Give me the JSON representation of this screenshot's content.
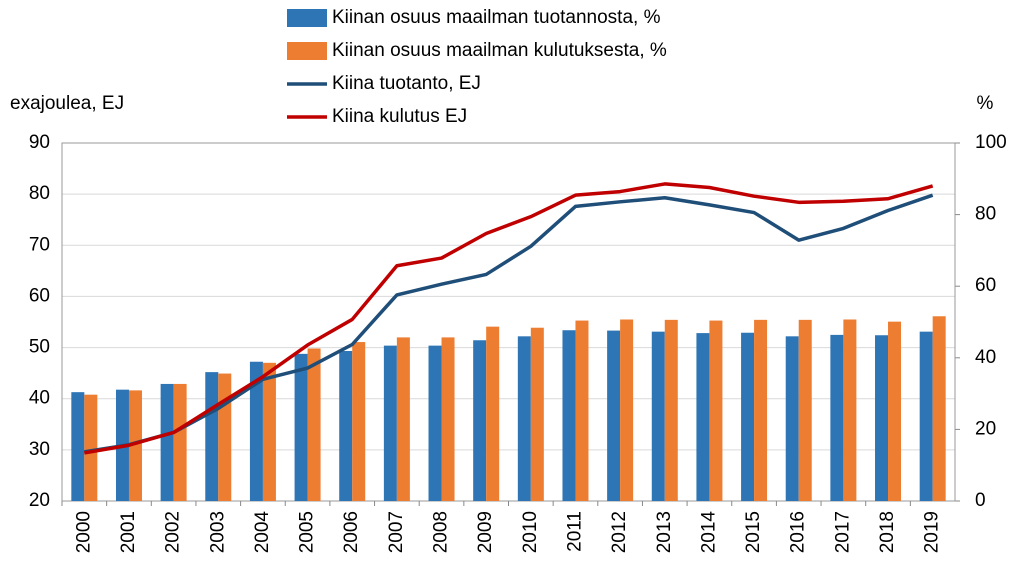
{
  "chart_data": {
    "type": "bar_line",
    "y_label": "exajoulea, EJ",
    "y2_label": "%",
    "categories": [
      "2000",
      "2001",
      "2002",
      "2003",
      "2004",
      "2005",
      "2006",
      "2007",
      "2008",
      "2009",
      "2010",
      "2011",
      "2012",
      "2013",
      "2014",
      "2015",
      "2016",
      "2017",
      "2018",
      "2019"
    ],
    "series": [
      {
        "name": "Kiinan osuus maailman tuotannosta, %",
        "kind": "bar",
        "axis": "y2",
        "color": "#2e75b6",
        "values": [
          30.4,
          31.1,
          32.7,
          36.0,
          38.9,
          41.1,
          41.9,
          43.4,
          43.4,
          44.9,
          46.0,
          47.7,
          47.6,
          47.3,
          46.9,
          47.0,
          46.0,
          46.4,
          46.3,
          47.3
        ]
      },
      {
        "name": "Kiinan osuus maailman kulutuksesta, %",
        "kind": "bar",
        "axis": "y2",
        "color": "#ed7d31",
        "values": [
          29.7,
          30.9,
          32.7,
          35.6,
          38.6,
          42.6,
          44.4,
          45.7,
          45.7,
          48.7,
          48.4,
          50.4,
          50.7,
          50.6,
          50.4,
          50.6,
          50.6,
          50.7,
          50.1,
          51.6
        ]
      },
      {
        "name": "Kiina tuotanto, EJ",
        "kind": "line",
        "color": "#1f4e79",
        "values": [
          29.6,
          31.0,
          33.4,
          38.1,
          43.8,
          46.0,
          50.6,
          60.3,
          62.4,
          64.3,
          69.8,
          77.6,
          78.5,
          79.3,
          77.9,
          76.4,
          71.0,
          73.3,
          76.8,
          79.8
        ]
      },
      {
        "name": "Kiina kulutus EJ",
        "kind": "line",
        "color": "#c00000",
        "values": [
          29.4,
          30.9,
          33.4,
          38.9,
          44.3,
          50.5,
          55.5,
          66.0,
          67.5,
          72.3,
          75.6,
          79.8,
          80.5,
          82.0,
          81.3,
          79.6,
          78.4,
          78.6,
          79.1,
          81.6
        ]
      }
    ],
    "ylim": [
      20,
      90
    ],
    "yticks": [
      20,
      30,
      40,
      50,
      60,
      70,
      80,
      90
    ],
    "y2lim": [
      0,
      100
    ],
    "y2ticks": [
      0,
      20,
      40,
      60,
      80,
      100
    ],
    "grid": true
  }
}
